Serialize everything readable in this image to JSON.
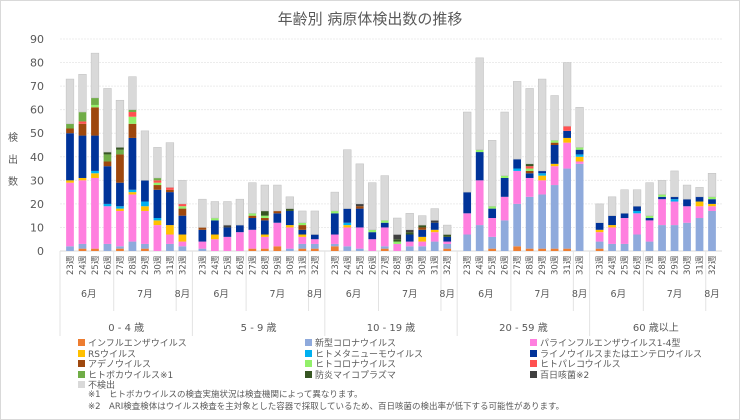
{
  "chart_data": {
    "type": "bar",
    "stacked": true,
    "title": "年齢別 病原体検出数の推移",
    "ylabel": "検出数",
    "xlabel": "",
    "ylim": [
      0,
      90
    ],
    "yticks": [
      0,
      10,
      20,
      30,
      40,
      50,
      60,
      70,
      80,
      90
    ],
    "grid": true,
    "legend_position": "bottom",
    "weeks": [
      "23週",
      "24週",
      "25週",
      "26週",
      "27週",
      "28週",
      "29週",
      "30週",
      "31週",
      "32週"
    ],
    "month_groups": [
      {
        "label": "6月",
        "span": 4
      },
      {
        "label": "7月",
        "span": 5
      },
      {
        "label": "8月",
        "span": 1
      }
    ],
    "age_groups": [
      "0 - 4 歳",
      "5 - 9 歳",
      "10 - 19 歳",
      "20 - 59 歳",
      "60 歳以上"
    ],
    "series": [
      {
        "name": "インフルエンザウイルス",
        "color": "#ed7d31",
        "values": [
          [
            0,
            1,
            1,
            0,
            1,
            0,
            1,
            0,
            0,
            0
          ],
          [
            0,
            0,
            0,
            0,
            1,
            1,
            2,
            0,
            1,
            1
          ],
          [
            2,
            0,
            0,
            0,
            1,
            0,
            0,
            0,
            0,
            1
          ],
          [
            0,
            0,
            1,
            0,
            2,
            1,
            1,
            1,
            1,
            0
          ],
          [
            1,
            0,
            0,
            0,
            0,
            0,
            0,
            0,
            0,
            0
          ]
        ]
      },
      {
        "name": "新型コロナウイルス",
        "color": "#8faadc",
        "values": [
          [
            2,
            2,
            0,
            3,
            1,
            4,
            2,
            0,
            3,
            2
          ],
          [
            1,
            0,
            0,
            0,
            0,
            0,
            0,
            1,
            2,
            2
          ],
          [
            1,
            2,
            1,
            0,
            1,
            0,
            2,
            2,
            4,
            2
          ],
          [
            7,
            11,
            5,
            13,
            18,
            22,
            23,
            27,
            34,
            37
          ],
          [
            3,
            3,
            3,
            7,
            4,
            11,
            11,
            12,
            14,
            17
          ]
        ]
      },
      {
        "name": "パラインフルエンザウイルス1-4型",
        "color": "#ff7fdf",
        "values": [
          [
            27,
            27,
            30,
            16,
            15,
            20,
            14,
            11,
            4,
            2
          ],
          [
            3,
            5,
            6,
            8,
            8,
            5,
            10,
            9,
            3,
            2
          ],
          [
            4,
            8,
            9,
            5,
            8,
            3,
            2,
            2,
            4,
            1
          ],
          [
            9,
            19,
            8,
            10,
            14,
            8,
            6,
            8,
            11,
            1
          ],
          [
            4,
            7,
            11,
            9,
            9,
            11,
            10,
            7,
            5,
            2
          ]
        ]
      },
      {
        "name": "RSウイルス",
        "color": "#ffc000",
        "values": [
          [
            1,
            1,
            2,
            0,
            1,
            1,
            2,
            2,
            4,
            3
          ],
          [
            0,
            2,
            0,
            0,
            0,
            1,
            0,
            1,
            1,
            0
          ],
          [
            0,
            1,
            0,
            0,
            0,
            0,
            0,
            2,
            1,
            0
          ],
          [
            0,
            0,
            0,
            0,
            0,
            0,
            2,
            1,
            2,
            2
          ],
          [
            1,
            1,
            0,
            0,
            0,
            0,
            0,
            0,
            2,
            1
          ]
        ]
      },
      {
        "name": "ヒトメタニューモウイルス",
        "color": "#00b0f0",
        "values": [
          [
            0,
            0,
            1,
            1,
            1,
            1,
            2,
            1,
            0,
            0
          ],
          [
            0,
            0,
            0,
            0,
            0,
            0,
            0,
            0,
            0,
            0
          ],
          [
            0,
            1,
            0,
            0,
            0,
            0,
            0,
            0,
            0,
            0
          ],
          [
            0,
            0,
            0,
            0,
            1,
            0,
            1,
            0,
            0,
            1
          ],
          [
            0,
            0,
            0,
            1,
            0,
            0,
            1,
            0,
            0,
            0
          ]
        ]
      },
      {
        "name": "ライノウイルスまたはエンテロウイルス",
        "color": "#003399",
        "values": [
          [
            20,
            18,
            15,
            16,
            10,
            22,
            9,
            12,
            14,
            8
          ],
          [
            5,
            6,
            4,
            3,
            5,
            6,
            4,
            6,
            2,
            2
          ],
          [
            9,
            6,
            8,
            3,
            2,
            0,
            3,
            3,
            3,
            2
          ],
          [
            9,
            12,
            4,
            8,
            4,
            2,
            1,
            8,
            3,
            2
          ],
          [
            3,
            4,
            2,
            2,
            1,
            1,
            1,
            3,
            2,
            2
          ]
        ]
      },
      {
        "name": "アデノウイルス",
        "color": "#9e480e",
        "values": [
          [
            2,
            5,
            12,
            2,
            12,
            6,
            0,
            2,
            1,
            3
          ],
          [
            1,
            0,
            0,
            0,
            1,
            1,
            1,
            0,
            2,
            0
          ],
          [
            0,
            0,
            1,
            0,
            0,
            0,
            0,
            1,
            0,
            0
          ],
          [
            0,
            0,
            0,
            0,
            0,
            1,
            0,
            1,
            0,
            0
          ],
          [
            0,
            0,
            0,
            0,
            0,
            0,
            0,
            0,
            0,
            0
          ]
        ]
      },
      {
        "name": "ヒトコロナウイルス",
        "color": "#92f06a",
        "values": [
          [
            0,
            0,
            1,
            0,
            0,
            3,
            0,
            1,
            0,
            1
          ],
          [
            0,
            1,
            0,
            0,
            1,
            1,
            0,
            0,
            1,
            0
          ],
          [
            1,
            0,
            0,
            1,
            1,
            1,
            0,
            0,
            0,
            0
          ],
          [
            0,
            1,
            1,
            1,
            0,
            1,
            0,
            1,
            0,
            1
          ],
          [
            0,
            0,
            0,
            0,
            1,
            1,
            0,
            0,
            0,
            1
          ]
        ]
      },
      {
        "name": "ヒトパレコウイルス",
        "color": "#ff5050",
        "values": [
          [
            0,
            1,
            0,
            0,
            0,
            2,
            0,
            1,
            1,
            1
          ],
          [
            0,
            0,
            0,
            0,
            0,
            0,
            0,
            0,
            0,
            0
          ],
          [
            0,
            0,
            0,
            0,
            0,
            0,
            0,
            0,
            0,
            0
          ],
          [
            0,
            0,
            0,
            0,
            0,
            1,
            0,
            0,
            2,
            0
          ],
          [
            0,
            0,
            0,
            0,
            0,
            0,
            0,
            0,
            0,
            0
          ]
        ]
      },
      {
        "name": "ヒトボカウイルス※1",
        "color": "#70ad47",
        "values": [
          [
            2,
            4,
            3,
            3,
            2,
            1,
            0,
            1,
            0,
            0
          ],
          [
            0,
            0,
            0,
            0,
            0,
            0,
            0,
            0,
            0,
            0
          ],
          [
            0,
            0,
            0,
            0,
            0,
            0,
            0,
            0,
            0,
            0
          ],
          [
            0,
            0,
            0,
            0,
            0,
            0,
            0,
            0,
            0,
            0
          ],
          [
            0,
            0,
            0,
            0,
            0,
            0,
            0,
            0,
            0,
            0
          ]
        ]
      },
      {
        "name": "防炎マイコプラズマ",
        "color": "#375623",
        "values": [
          [
            0,
            0,
            0,
            1,
            1,
            0,
            0,
            0,
            0,
            0
          ],
          [
            0,
            0,
            0,
            0,
            0,
            2,
            0,
            1,
            0,
            0
          ],
          [
            0,
            0,
            0,
            0,
            0,
            1,
            1,
            1,
            0,
            1
          ],
          [
            0,
            0,
            0,
            0,
            0,
            1,
            0,
            0,
            0,
            0
          ],
          [
            0,
            0,
            0,
            0,
            0,
            0,
            0,
            0,
            0,
            0
          ]
        ]
      },
      {
        "name": "百日咳菌※2",
        "color": "#404040",
        "values": [
          [
            0,
            0,
            0,
            0,
            0,
            0,
            0,
            0,
            0,
            0
          ],
          [
            0,
            0,
            1,
            0,
            0,
            0,
            0,
            0,
            0,
            0
          ],
          [
            0,
            0,
            1,
            0,
            0,
            2,
            1,
            0,
            1,
            0
          ],
          [
            0,
            0,
            0,
            0,
            0,
            0,
            0,
            0,
            0,
            0
          ],
          [
            0,
            0,
            0,
            0,
            0,
            0,
            0,
            0,
            0,
            0
          ]
        ]
      },
      {
        "name": "不検出",
        "color": "#d9d9d9",
        "values": [
          [
            19,
            16,
            19,
            27,
            20,
            14,
            21,
            13,
            19,
            10
          ],
          [
            12,
            7,
            10,
            11,
            13,
            11,
            11,
            5,
            5,
            10
          ],
          [
            8,
            25,
            17,
            20,
            19,
            7,
            7,
            4,
            5,
            4
          ],
          [
            34,
            39,
            28,
            27,
            33,
            32,
            39,
            19,
            27,
            17
          ],
          [
            8,
            8,
            10,
            7,
            14,
            6,
            11,
            6,
            4,
            10
          ]
        ]
      }
    ]
  },
  "legend": {
    "columns": [
      [
        "インフルエンザウイルス",
        "RSウイルス",
        "アデノウイルス",
        "ヒトボカウイルス※1",
        "不検出"
      ],
      [
        "新型コロナウイルス",
        "ヒトメタニューモウイルス",
        "ヒトコロナウイルス",
        "防炎マイコプラズマ"
      ],
      [
        "パラインフルエンザウイルス1-4型",
        "ライノウイルスまたはエンテロウイルス",
        "ヒトパレコウイルス",
        "百日咳菌※2"
      ]
    ]
  },
  "notes": [
    "※1　ヒトボカウイルスの検査実施状況は検査機関によって異なります。",
    "※2　ARI検査検体はウイルス検査を主対象とした容器で採取しているため、百日咳菌の検出率が低下する可能性があります。"
  ]
}
